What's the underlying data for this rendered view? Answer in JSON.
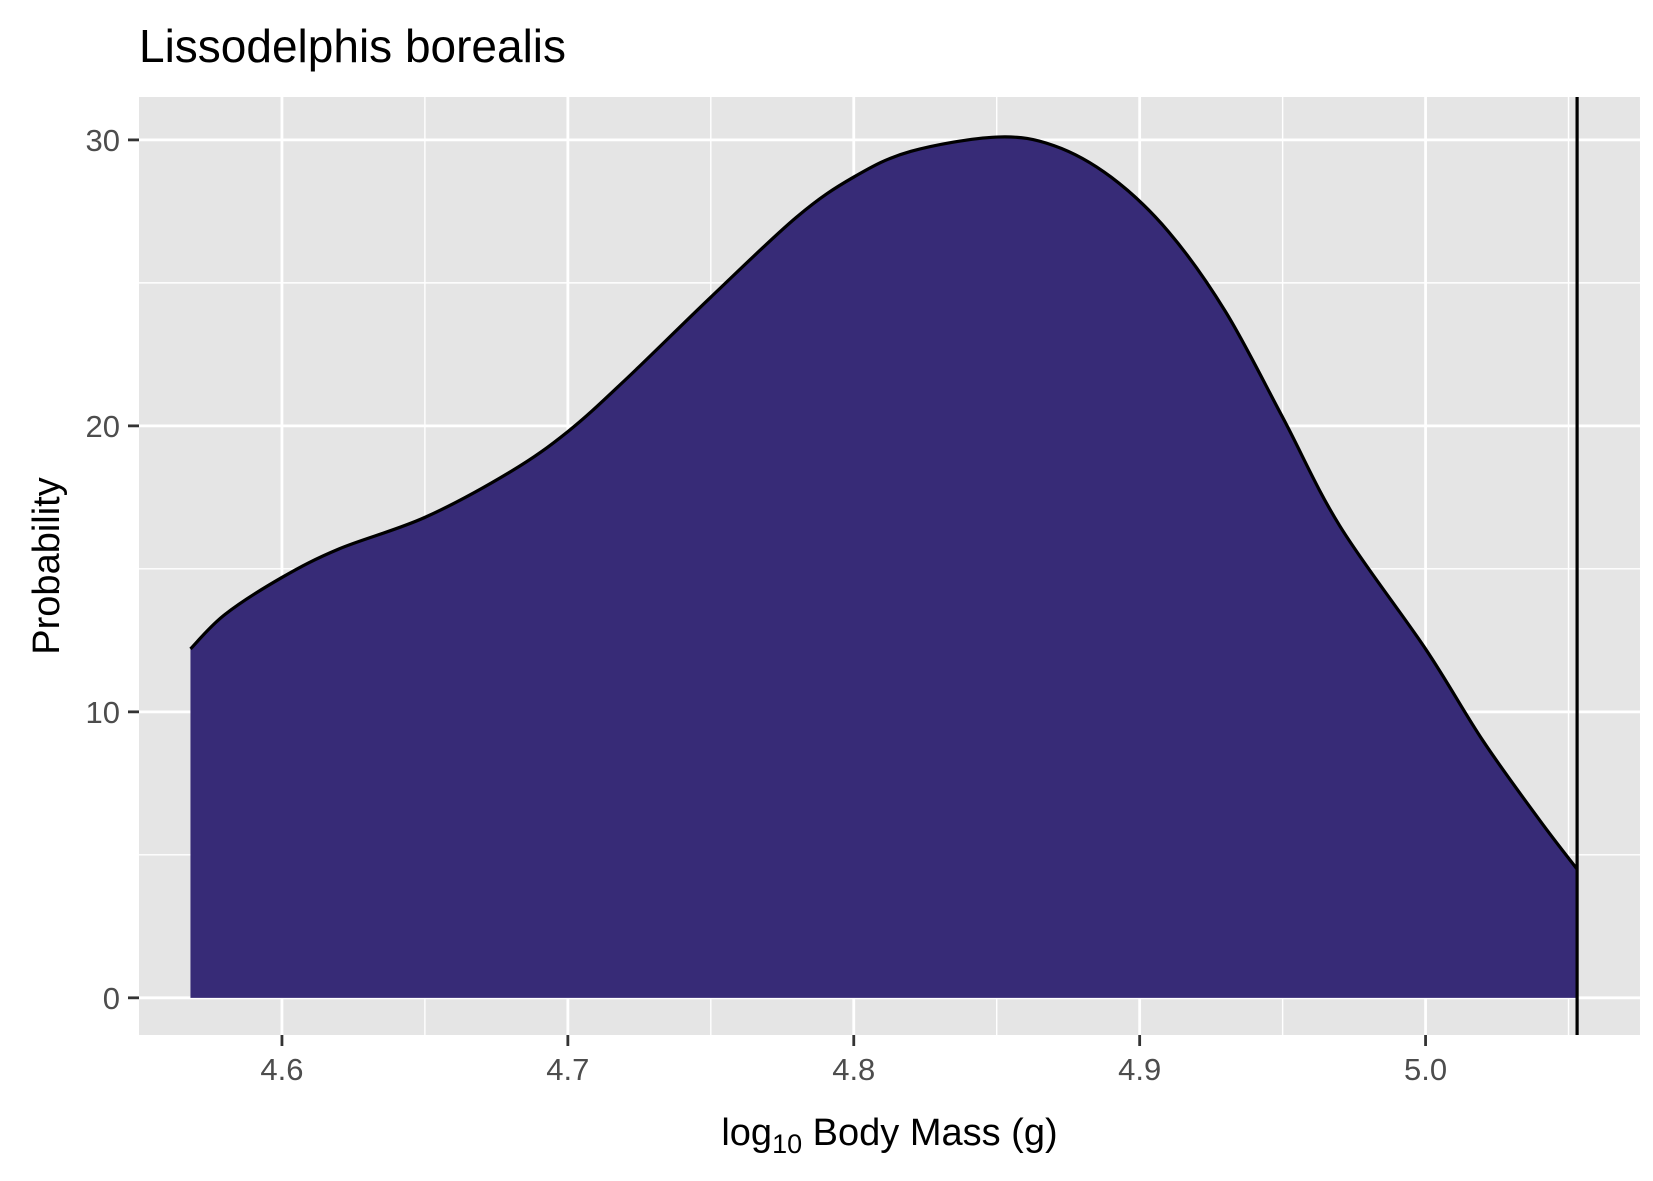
{
  "chart_data": {
    "type": "area",
    "title": "Lissodelphis borealis",
    "xlabel": {
      "prefix": "log",
      "subscript": "10",
      "suffix": " Body Mass (g)"
    },
    "ylabel": "Probability",
    "xlim": [
      4.55,
      5.075
    ],
    "ylim": [
      -1.3,
      31.5
    ],
    "x_ticks": [
      {
        "value": 4.6,
        "label": "4.6"
      },
      {
        "value": 4.7,
        "label": "4.7"
      },
      {
        "value": 4.8,
        "label": "4.8"
      },
      {
        "value": 4.9,
        "label": "4.9"
      },
      {
        "value": 5.0,
        "label": "5.0"
      }
    ],
    "y_ticks": [
      {
        "value": 0,
        "label": "0"
      },
      {
        "value": 10,
        "label": "10"
      },
      {
        "value": 20,
        "label": "20"
      },
      {
        "value": 30,
        "label": "30"
      }
    ],
    "grid": true,
    "fill_color": "#372b77",
    "line_color": "#000000",
    "background_color": "#e5e5e5",
    "grid_color": "#ffffff",
    "vline_x": 5.053,
    "density": {
      "x": [
        4.568,
        4.58,
        4.6,
        4.62,
        4.65,
        4.68,
        4.7,
        4.72,
        4.75,
        4.78,
        4.8,
        4.82,
        4.85,
        4.87,
        4.89,
        4.91,
        4.93,
        4.95,
        4.97,
        5.0,
        5.02,
        5.04,
        5.053
      ],
      "y": [
        12.2,
        13.4,
        14.7,
        15.7,
        16.8,
        18.4,
        19.8,
        21.6,
        24.5,
        27.3,
        28.7,
        29.6,
        30.1,
        29.8,
        28.7,
        26.8,
        24.0,
        20.3,
        16.5,
        12.2,
        9.0,
        6.2,
        4.5
      ]
    }
  }
}
